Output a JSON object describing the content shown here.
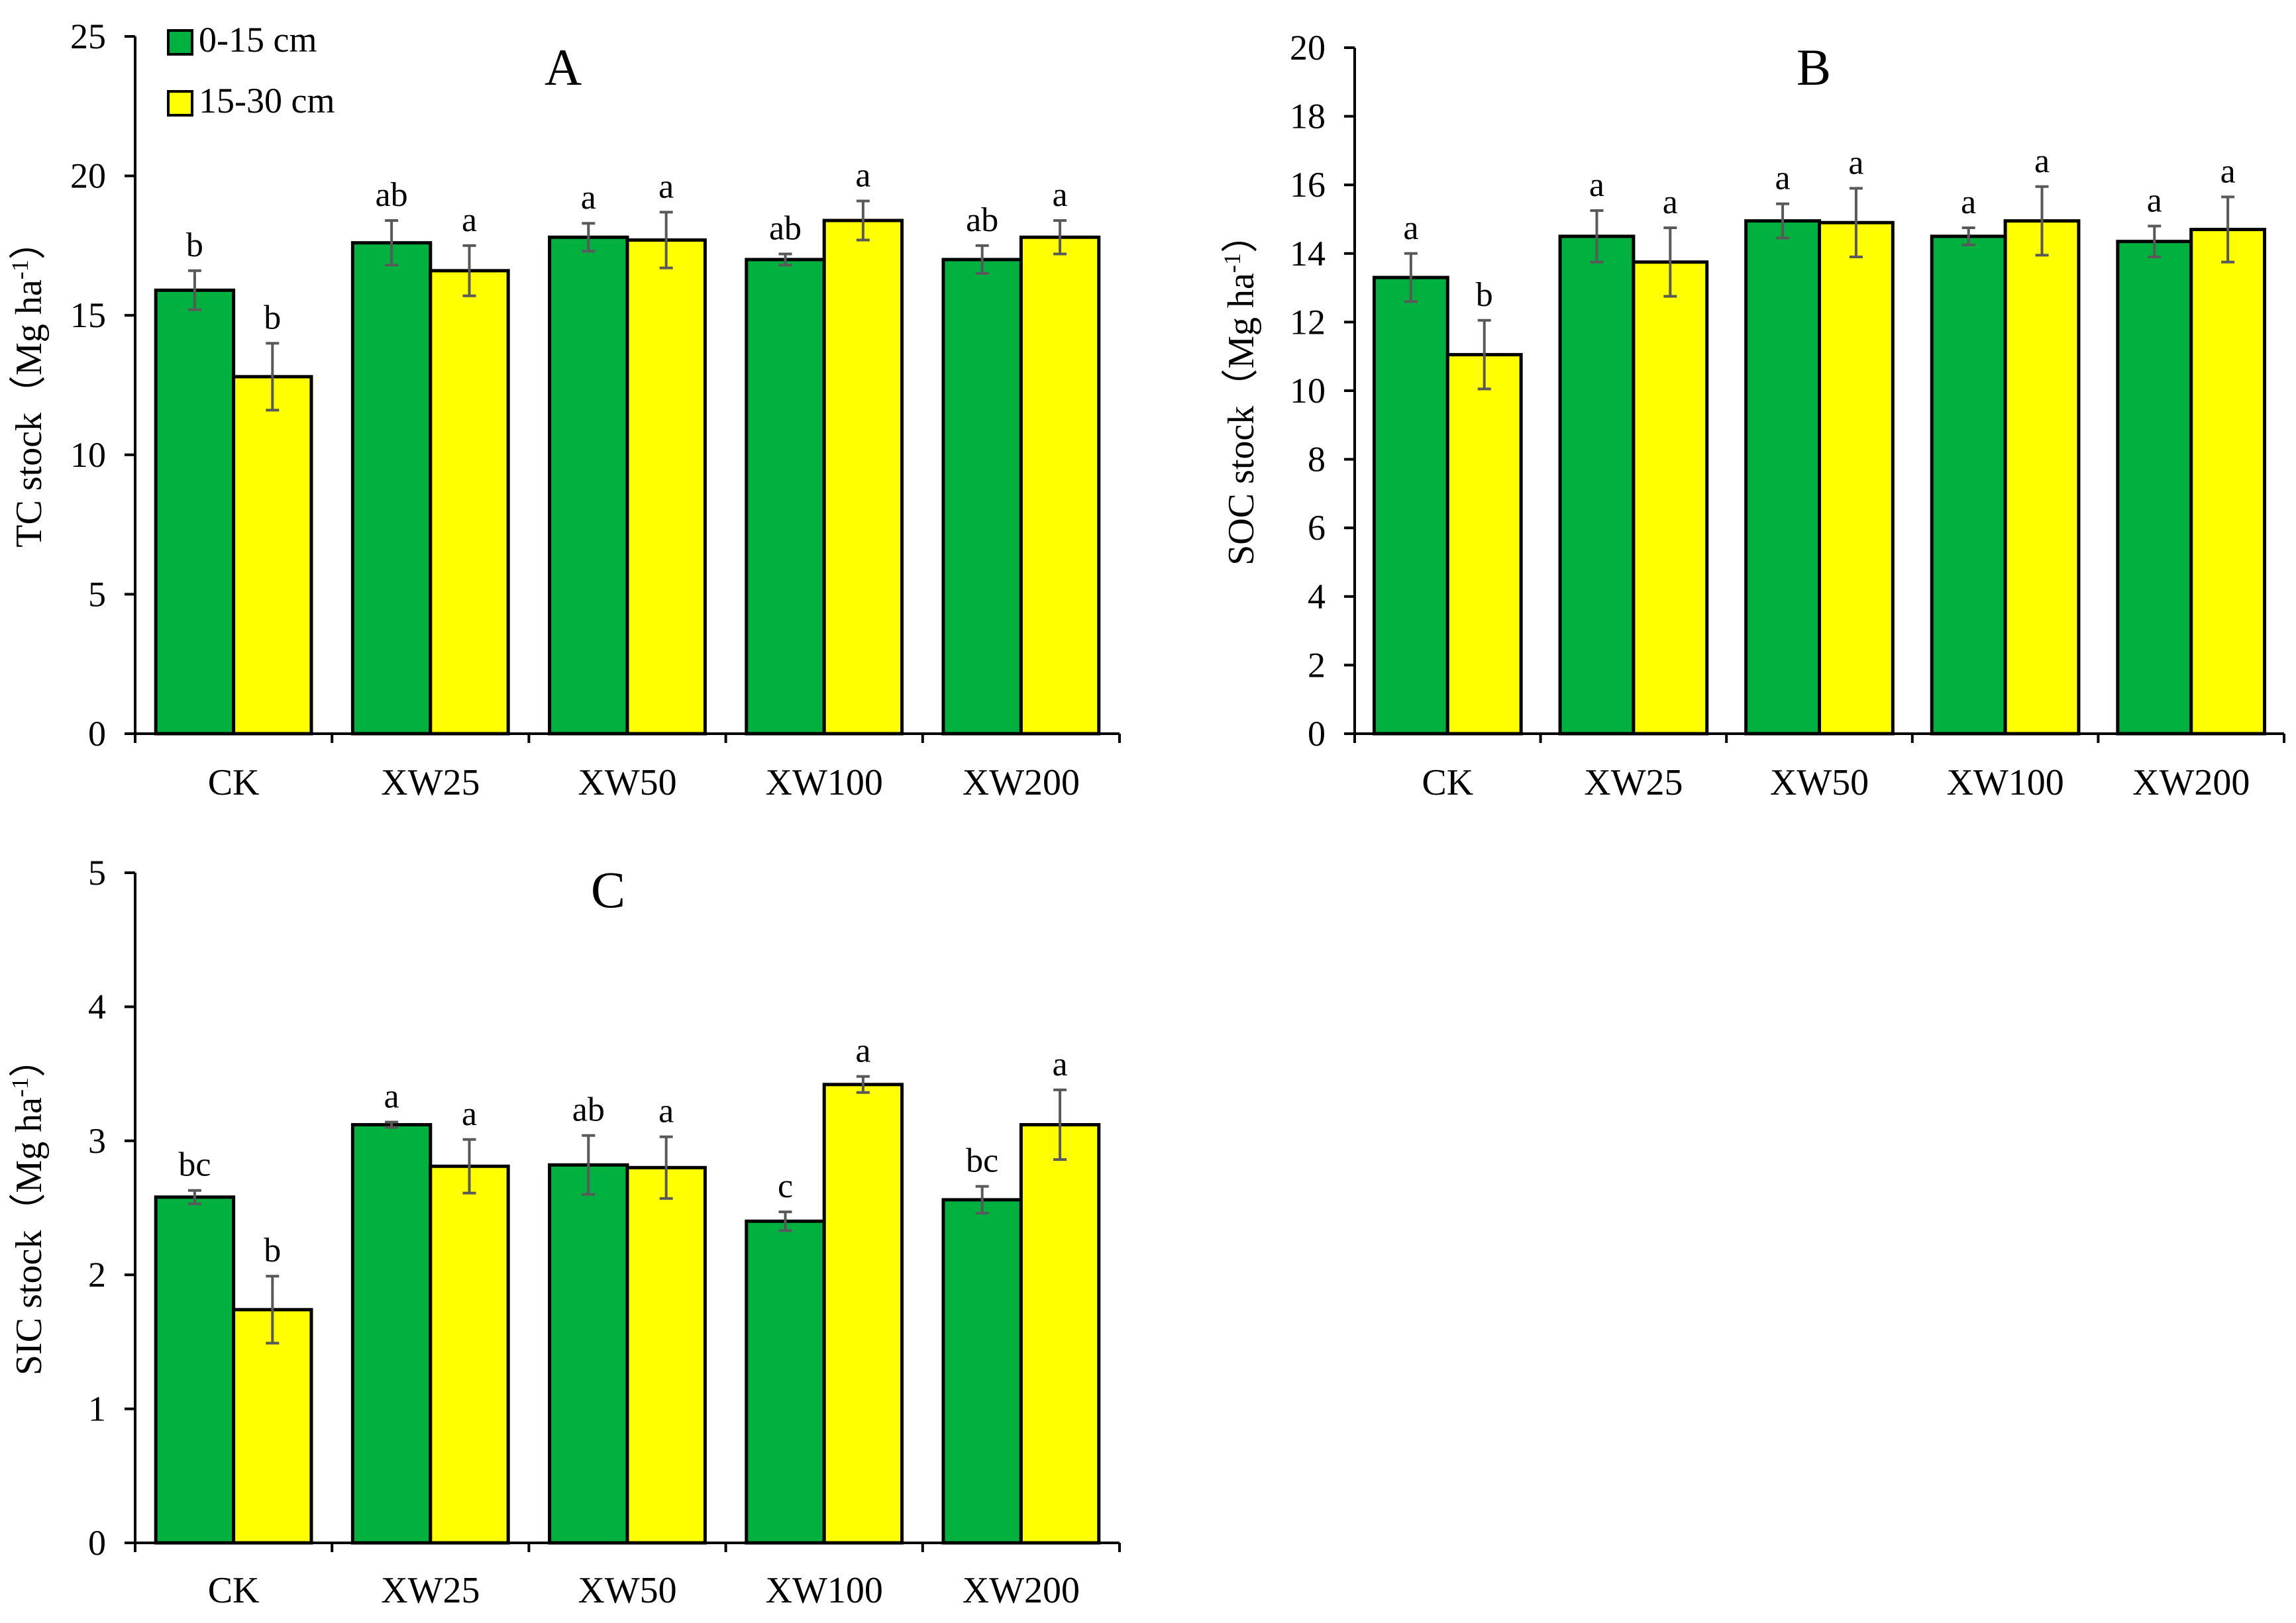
{
  "colors": {
    "series0": "#00b140",
    "series1": "#ffff00",
    "axis": "#000000",
    "errorbar": "#595959"
  },
  "legend": [
    {
      "label": "0-15 cm",
      "color": "#00b140"
    },
    {
      "label": "15-30 cm",
      "color": "#ffff00"
    }
  ],
  "chart_data": [
    {
      "type": "bar",
      "title": "A",
      "ylabel": "TC stock（Mg ha",
      "ylabel_sup": "-1",
      "ylabel_close": "）",
      "categories": [
        "CK",
        "XW25",
        "XW50",
        "XW100",
        "XW200"
      ],
      "ylim": [
        0,
        25
      ],
      "yticks": [
        0,
        5,
        10,
        15,
        20,
        25
      ],
      "series": [
        {
          "name": "0-15 cm",
          "values": [
            15.9,
            17.6,
            17.8,
            17.0,
            17.0
          ],
          "errors": [
            0.7,
            0.8,
            0.5,
            0.2,
            0.5
          ],
          "labels": [
            "b",
            "ab",
            "a",
            "ab",
            "ab"
          ]
        },
        {
          "name": "15-30 cm",
          "values": [
            12.8,
            16.6,
            17.7,
            18.4,
            17.8
          ],
          "errors": [
            1.2,
            0.9,
            1.0,
            0.7,
            0.6
          ],
          "labels": [
            "b",
            "a",
            "a",
            "a",
            "a"
          ]
        }
      ]
    },
    {
      "type": "bar",
      "title": "B",
      "ylabel": "SOC stock（Mg ha",
      "ylabel_sup": "-1",
      "ylabel_close": "）",
      "categories": [
        "CK",
        "XW25",
        "XW50",
        "XW100",
        "XW200"
      ],
      "ylim": [
        0,
        20
      ],
      "yticks": [
        0,
        2,
        4,
        6,
        8,
        10,
        12,
        14,
        16,
        18,
        20
      ],
      "series": [
        {
          "name": "0-15 cm",
          "values": [
            13.3,
            14.5,
            14.95,
            14.5,
            14.35
          ],
          "errors": [
            0.7,
            0.75,
            0.5,
            0.25,
            0.45
          ],
          "labels": [
            "a",
            "a",
            "a",
            "a",
            "a"
          ]
        },
        {
          "name": "15-30 cm",
          "values": [
            11.05,
            13.75,
            14.9,
            14.95,
            14.7
          ],
          "errors": [
            1.0,
            1.0,
            1.0,
            1.0,
            0.95
          ],
          "labels": [
            "b",
            "a",
            "a",
            "a",
            "a"
          ]
        }
      ]
    },
    {
      "type": "bar",
      "title": "C",
      "ylabel": "SIC stock（Mg ha",
      "ylabel_sup": "-1",
      "ylabel_close": "）",
      "categories": [
        "CK",
        "XW25",
        "XW50",
        "XW100",
        "XW200"
      ],
      "ylim": [
        0,
        5
      ],
      "yticks": [
        0,
        1,
        2,
        3,
        4,
        5
      ],
      "series": [
        {
          "name": "0-15 cm",
          "values": [
            2.58,
            3.12,
            2.82,
            2.4,
            2.56
          ],
          "errors": [
            0.05,
            0.02,
            0.22,
            0.07,
            0.1
          ],
          "labels": [
            "bc",
            "a",
            "ab",
            "c",
            "bc"
          ]
        },
        {
          "name": "15-30 cm",
          "values": [
            1.74,
            2.81,
            2.8,
            3.42,
            3.12
          ],
          "errors": [
            0.25,
            0.2,
            0.23,
            0.06,
            0.26
          ],
          "labels": [
            "b",
            "a",
            "a",
            "a",
            "a"
          ]
        }
      ]
    }
  ]
}
